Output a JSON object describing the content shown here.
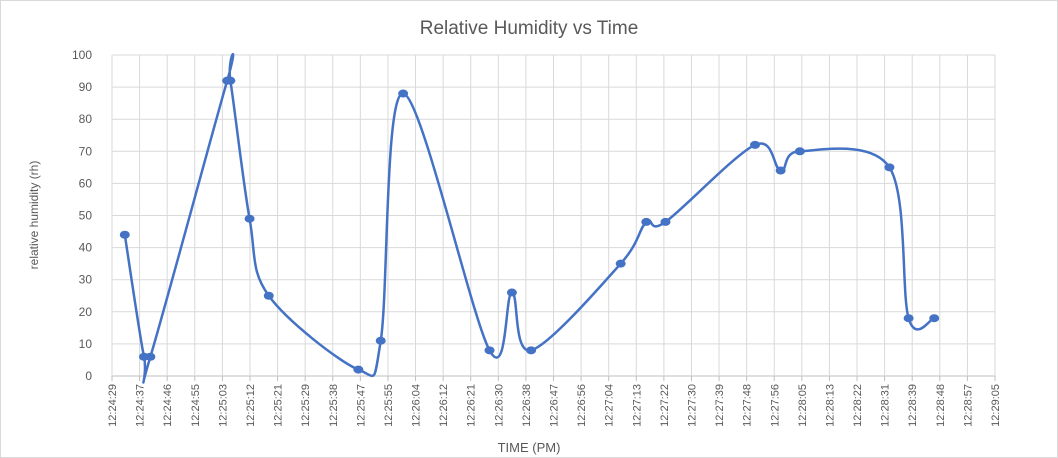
{
  "chart_data": {
    "type": "line",
    "title": "Relative Humidity vs Time",
    "x_label": "TIME (PM)",
    "y_label": "relative humidity (rh)",
    "x": [
      44673,
      44679,
      44681,
      44705,
      44706,
      44712,
      44718,
      44746,
      44753,
      44760,
      44787,
      44794,
      44800,
      44828,
      44836,
      44842,
      44870,
      44878,
      44884,
      44912,
      44918,
      44926
    ],
    "series": [
      {
        "name": "relative humidity (rh)",
        "color": "#4472c4",
        "values": [
          44,
          6,
          6,
          92,
          92,
          49,
          25,
          2,
          11,
          88,
          8,
          26,
          8,
          35,
          48,
          48,
          72,
          64,
          70,
          65,
          18,
          18
        ]
      }
    ],
    "smooth": true,
    "grid": true,
    "ylim": [
      0,
      100
    ],
    "yticks": [
      0,
      10,
      20,
      30,
      40,
      50,
      60,
      70,
      80,
      90,
      100
    ],
    "xlim": [
      44669,
      44945
    ],
    "xticks": [
      {
        "value": 44669,
        "label": "12:24:29"
      },
      {
        "value": 44677.625,
        "label": "12:24:37"
      },
      {
        "value": 44686.25,
        "label": "12:24:46"
      },
      {
        "value": 44694.875,
        "label": "12:24:55"
      },
      {
        "value": 44703.5,
        "label": "12:25:03"
      },
      {
        "value": 44712.125,
        "label": "12:25:12"
      },
      {
        "value": 44720.75,
        "label": "12:25:21"
      },
      {
        "value": 44729.375,
        "label": "12:25:29"
      },
      {
        "value": 44738,
        "label": "12:25:38"
      },
      {
        "value": 44746.625,
        "label": "12:25:47"
      },
      {
        "value": 44755.25,
        "label": "12:25:55"
      },
      {
        "value": 44763.875,
        "label": "12:26:04"
      },
      {
        "value": 44772.5,
        "label": "12:26:12"
      },
      {
        "value": 44781.125,
        "label": "12:26:21"
      },
      {
        "value": 44789.75,
        "label": "12:26:30"
      },
      {
        "value": 44798.375,
        "label": "12:26:38"
      },
      {
        "value": 44807,
        "label": "12:26:47"
      },
      {
        "value": 44815.625,
        "label": "12:26:56"
      },
      {
        "value": 44824.25,
        "label": "12:27:04"
      },
      {
        "value": 44832.875,
        "label": "12:27:13"
      },
      {
        "value": 44841.5,
        "label": "12:27:22"
      },
      {
        "value": 44850.125,
        "label": "12:27:30"
      },
      {
        "value": 44858.75,
        "label": "12:27:39"
      },
      {
        "value": 44867.375,
        "label": "12:27:48"
      },
      {
        "value": 44876,
        "label": "12:27:56"
      },
      {
        "value": 44884.625,
        "label": "12:28:05"
      },
      {
        "value": 44893.25,
        "label": "12:28:13"
      },
      {
        "value": 44901.875,
        "label": "12:28:22"
      },
      {
        "value": 44910.5,
        "label": "12:28:31"
      },
      {
        "value": 44919.125,
        "label": "12:28:39"
      },
      {
        "value": 44927.75,
        "label": "12:28:48"
      },
      {
        "value": 44936.375,
        "label": "12:28:57"
      },
      {
        "value": 44945,
        "label": "12:29:05"
      }
    ]
  }
}
